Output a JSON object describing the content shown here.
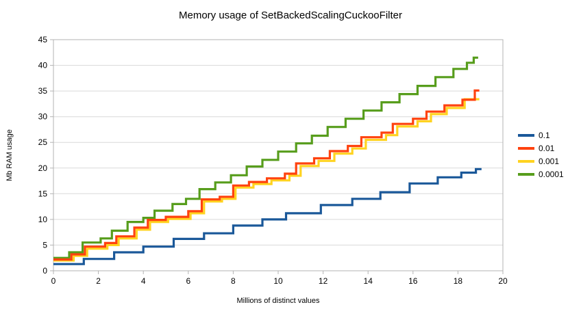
{
  "chart_data": {
    "type": "line",
    "title": "Memory usage of SetBackedScalingCuckooFilter",
    "xlabel": "Millions of distinct values",
    "ylabel": "Mb RAM usage",
    "xlim": [
      0,
      20
    ],
    "ylim": [
      0,
      45
    ],
    "x_tick_step": 2,
    "y_tick_step": 5,
    "grid": "horizontal",
    "legend_position": "right",
    "line_style": "step",
    "series": [
      {
        "name": "0.1",
        "color": "#1A5899",
        "x_end": 19.05,
        "steps": [
          [
            0,
            1.3
          ],
          [
            1.35,
            2.3
          ],
          [
            2.7,
            3.6
          ],
          [
            4.0,
            4.7
          ],
          [
            5.35,
            6.2
          ],
          [
            6.7,
            7.3
          ],
          [
            8.0,
            8.8
          ],
          [
            9.3,
            10.0
          ],
          [
            10.35,
            11.2
          ],
          [
            11.9,
            12.8
          ],
          [
            13.3,
            14.0
          ],
          [
            14.55,
            15.3
          ],
          [
            15.85,
            17.0
          ],
          [
            17.1,
            18.2
          ],
          [
            18.15,
            19.1
          ],
          [
            18.8,
            19.8
          ]
        ]
      },
      {
        "name": "0.01",
        "color": "#FF420E",
        "x_end": 18.95,
        "steps": [
          [
            0,
            2.2
          ],
          [
            0.8,
            3.2
          ],
          [
            1.4,
            4.7
          ],
          [
            2.3,
            5.4
          ],
          [
            2.8,
            6.7
          ],
          [
            3.6,
            8.4
          ],
          [
            4.2,
            9.9
          ],
          [
            5.0,
            10.5
          ],
          [
            6.0,
            11.6
          ],
          [
            6.6,
            13.9
          ],
          [
            7.4,
            14.4
          ],
          [
            8.0,
            16.6
          ],
          [
            8.7,
            17.3
          ],
          [
            9.5,
            18.0
          ],
          [
            10.3,
            18.9
          ],
          [
            10.8,
            20.9
          ],
          [
            11.6,
            21.9
          ],
          [
            12.3,
            23.3
          ],
          [
            13.1,
            24.3
          ],
          [
            13.7,
            26.0
          ],
          [
            14.6,
            26.9
          ],
          [
            15.1,
            28.6
          ],
          [
            16.0,
            29.6
          ],
          [
            16.6,
            31.0
          ],
          [
            17.4,
            32.2
          ],
          [
            18.2,
            33.3
          ],
          [
            18.75,
            35.1
          ]
        ]
      },
      {
        "name": "0.001",
        "color": "#FFD320",
        "x_end": 18.95,
        "steps": [
          [
            0,
            2.0
          ],
          [
            0.9,
            2.9
          ],
          [
            1.5,
            4.3
          ],
          [
            2.4,
            5.0
          ],
          [
            2.9,
            6.3
          ],
          [
            3.7,
            8.0
          ],
          [
            4.3,
            9.5
          ],
          [
            5.1,
            10.1
          ],
          [
            6.1,
            11.2
          ],
          [
            6.7,
            13.5
          ],
          [
            7.5,
            14.0
          ],
          [
            8.1,
            16.2
          ],
          [
            8.9,
            16.9
          ],
          [
            9.7,
            17.6
          ],
          [
            10.5,
            18.5
          ],
          [
            11.0,
            20.4
          ],
          [
            11.8,
            21.4
          ],
          [
            12.5,
            22.8
          ],
          [
            13.3,
            23.8
          ],
          [
            13.9,
            25.5
          ],
          [
            14.8,
            26.4
          ],
          [
            15.3,
            28.1
          ],
          [
            16.2,
            29.1
          ],
          [
            16.8,
            30.5
          ],
          [
            17.5,
            31.7
          ],
          [
            18.3,
            33.4
          ]
        ]
      },
      {
        "name": "0.0001",
        "color": "#579D1C",
        "x_end": 18.9,
        "steps": [
          [
            0,
            2.5
          ],
          [
            0.7,
            3.6
          ],
          [
            1.3,
            5.5
          ],
          [
            2.1,
            6.3
          ],
          [
            2.6,
            7.8
          ],
          [
            3.3,
            9.5
          ],
          [
            4.0,
            10.3
          ],
          [
            4.5,
            11.7
          ],
          [
            5.3,
            13.0
          ],
          [
            5.9,
            14.0
          ],
          [
            6.5,
            15.9
          ],
          [
            7.2,
            17.2
          ],
          [
            7.9,
            18.6
          ],
          [
            8.6,
            20.3
          ],
          [
            9.3,
            21.6
          ],
          [
            10.0,
            23.2
          ],
          [
            10.8,
            24.8
          ],
          [
            11.5,
            26.3
          ],
          [
            12.2,
            28.0
          ],
          [
            13.0,
            29.6
          ],
          [
            13.8,
            31.2
          ],
          [
            14.6,
            32.8
          ],
          [
            15.4,
            34.4
          ],
          [
            16.2,
            36.0
          ],
          [
            17.0,
            37.7
          ],
          [
            17.8,
            39.3
          ],
          [
            18.4,
            40.5
          ],
          [
            18.7,
            41.5
          ]
        ]
      }
    ],
    "colors": {
      "grid": "#d9d9d9",
      "axis_border": "#b3b3b3",
      "text": "#000000",
      "background": "#ffffff"
    }
  }
}
